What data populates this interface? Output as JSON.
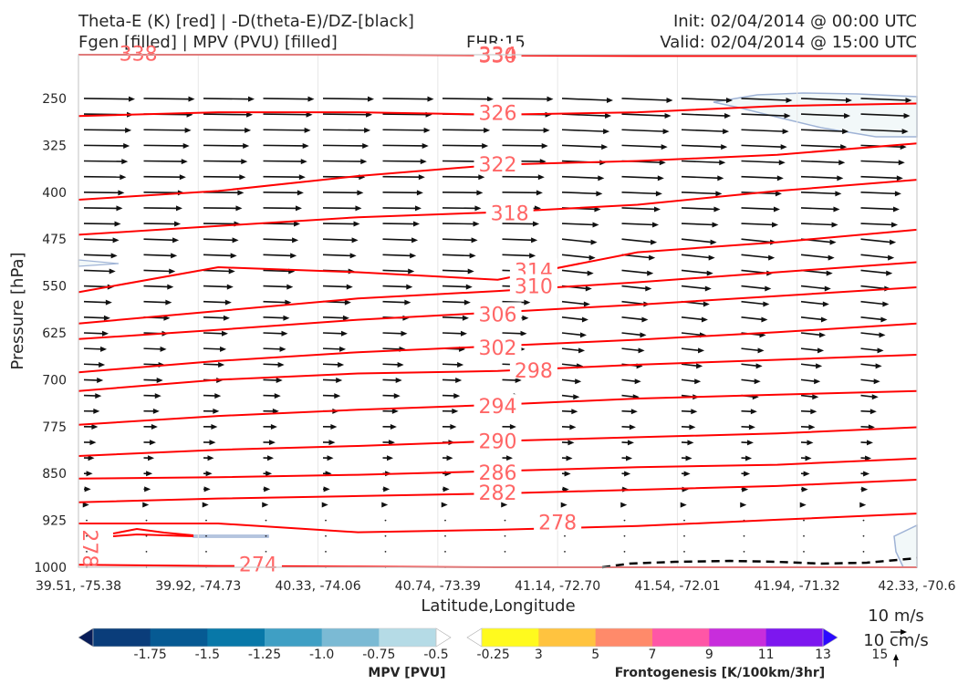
{
  "header": {
    "line1_left": "Theta-E (K) [red] | -D(theta-E)/DZ-[black]",
    "line2_left": "Fgen [filled] | MPV (PVU) [filled]",
    "line2_center": "FHR:15",
    "line1_right": "Init: 02/04/2014 @ 00:00 UTC",
    "line2_right": "Valid: 02/04/2014 @ 15:00 UTC"
  },
  "chart_data": {
    "type": "cross-section",
    "xlabel": "Latitude,Longitude",
    "ylabel": "Pressure [hPa]",
    "x_ticks": [
      "39.51, -75.38",
      "39.92, -74.73",
      "40.33, -74.06",
      "40.74, -73.39",
      "41.14, -72.70",
      "41.54, -72.01",
      "41.94, -71.32",
      "42.33, -70.6"
    ],
    "y_ticks": [
      250,
      325,
      400,
      475,
      550,
      625,
      700,
      775,
      850,
      925,
      1000
    ],
    "ylim": [
      1000,
      180
    ],
    "theta_e_contours": [
      {
        "label": "330",
        "p": [
          180,
          180,
          180,
          181,
          182,
          182,
          182
        ],
        "xlabel_at": 3.5,
        "ylabel_at": 181
      },
      {
        "label": "326",
        "p": [
          278,
          272,
          272,
          276,
          272,
          262,
          258
        ],
        "xlabel_at": 3.5,
        "ylabel_at": 273
      },
      {
        "label": "322",
        "p": [
          412,
          398,
          374,
          356,
          350,
          340,
          322
        ],
        "xlabel_at": 3.5,
        "ylabel_at": 355
      },
      {
        "label": "318",
        "p": [
          468,
          454,
          440,
          432,
          420,
          398,
          380
        ],
        "xlabel_at": 3.6,
        "ylabel_at": 433
      },
      {
        "label": "314",
        "p": [
          560,
          520,
          528,
          540,
          496,
          480,
          460
        ],
        "xlabel_at": 3.8,
        "ylabel_at": 525
      },
      {
        "label": "310",
        "p": [
          610,
          590,
          570,
          558,
          544,
          528,
          512
        ],
        "xlabel_at": 3.8,
        "ylabel_at": 550
      },
      {
        "label": "306",
        "p": [
          635,
          620,
          604,
          592,
          580,
          566,
          552
        ],
        "xlabel_at": 3.5,
        "ylabel_at": 595
      },
      {
        "label": "302",
        "p": [
          688,
          670,
          656,
          646,
          636,
          624,
          610
        ],
        "xlabel_at": 3.5,
        "ylabel_at": 648
      },
      {
        "label": "298",
        "p": [
          718,
          700,
          690,
          686,
          676,
          668,
          660
        ],
        "xlabel_at": 3.8,
        "ylabel_at": 685
      },
      {
        "label": "294",
        "p": [
          772,
          758,
          748,
          740,
          730,
          724,
          718
        ],
        "xlabel_at": 3.5,
        "ylabel_at": 742
      },
      {
        "label": "290",
        "p": [
          822,
          812,
          806,
          798,
          792,
          786,
          776
        ],
        "xlabel_at": 3.5,
        "ylabel_at": 798
      },
      {
        "label": "286",
        "p": [
          858,
          856,
          852,
          846,
          840,
          836,
          826
        ],
        "xlabel_at": 3.5,
        "ylabel_at": 848
      },
      {
        "label": "282",
        "p": [
          896,
          890,
          886,
          882,
          876,
          870,
          860
        ],
        "xlabel_at": 3.5,
        "ylabel_at": 880
      },
      {
        "label": "278",
        "p": [
          930,
          930,
          944,
          940,
          934,
          924,
          914
        ],
        "xlabel_at": 4.0,
        "ylabel_at": 928
      },
      {
        "label": "274",
        "p": [
          996,
          998,
          999,
          1000,
          1000,
          1000,
          1000
        ],
        "xlabel_at": 1.5,
        "ylabel_at": 995
      }
    ],
    "extra_contour_labels": [
      {
        "text": "338",
        "xlabel_at": 0.5,
        "ylabel_at": 178
      },
      {
        "text": "334",
        "xlabel_at": 3.5,
        "ylabel_at": 179
      },
      {
        "text": "278",
        "xlabel_at": 0.1,
        "ylabel_at": 970,
        "rotated": true
      }
    ],
    "mpv_colorbar": {
      "title": "MPV [PVU]",
      "ticks": [
        "-1.75",
        "-1.5",
        "-1.25",
        "-1.0",
        "-0.75",
        "-0.5",
        "-0.25"
      ],
      "colors": [
        "#081d58",
        "#0a3d7a",
        "#065a93",
        "#0878a8",
        "#3f9fc4",
        "#7bbad4",
        "#b5dbe6",
        "#ffffff"
      ]
    },
    "fgen_colorbar": {
      "title": "Frontogenesis [K/100km/3hr]",
      "ticks": [
        "3",
        "5",
        "7",
        "9",
        "11",
        "13",
        "15"
      ],
      "colors": [
        "#ffffff",
        "#fffa1e",
        "#ffc33f",
        "#ff8a6a",
        "#ff56a6",
        "#c82ddc",
        "#7d17ef",
        "#2b09ff"
      ]
    },
    "wind_legend": {
      "label1": "10 m/s",
      "label2": "10 cm/s"
    }
  }
}
